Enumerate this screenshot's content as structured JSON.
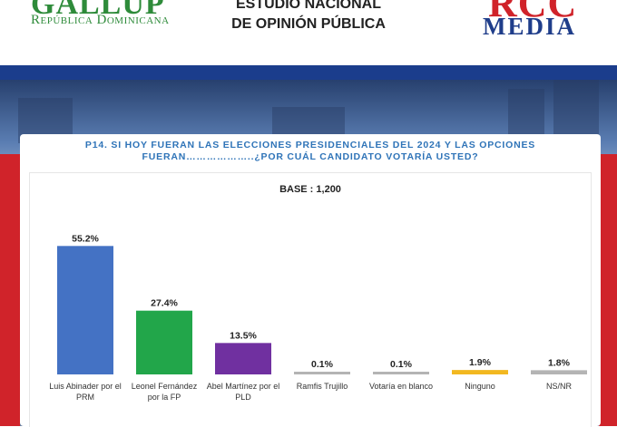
{
  "header": {
    "gallup_brand": "GALLUP",
    "gallup_sub": "República Dominicana",
    "study_line1": "ESTUDIO NACIONAL",
    "study_line2": "DE OPINIÓN PÚBLICA",
    "rcc_brand": "RCC",
    "rcc_media": "MEDIA"
  },
  "colors": {
    "question_text": "#2f74b8",
    "bar_blue": "#4472c4",
    "bar_green": "#22a64a",
    "bar_purple": "#7030a0",
    "bar_gray": "#b4b4b4",
    "bar_yellow": "#f2b820",
    "accent_red": "#d0232a",
    "accent_blue": "#1b3d8c"
  },
  "chart_data": {
    "type": "bar",
    "question_line1": "P14.  SI HOY FUERAN LAS ELECCIONES PRESIDENCIALES DEL 2024 Y LAS OPCIONES",
    "question_line2": "FUERAN………………..¿POR CUÁL CANDIDATO VOTARÍA USTED?",
    "base": "BASE : 1,200",
    "unit": "%",
    "categories": [
      [
        "Luis Abinader por el",
        "PRM"
      ],
      [
        "Leonel Fernández",
        "por la FP"
      ],
      [
        "Abel Martínez por el",
        "PLD"
      ],
      [
        "Ramfis Trujillo"
      ],
      [
        "Votaría en blanco"
      ],
      [
        "Ninguno"
      ],
      [
        "NS/NR"
      ]
    ],
    "values": [
      55.2,
      27.4,
      13.5,
      0.1,
      0.1,
      1.9,
      1.8
    ],
    "value_labels": [
      "55.2%",
      "27.4%",
      "13.5%",
      "0.1%",
      "0.1%",
      "1.9%",
      "1.8%"
    ],
    "bar_colors": [
      "#4472c4",
      "#22a64a",
      "#7030a0",
      "#b4b4b4",
      "#b4b4b4",
      "#f2b820",
      "#b4b4b4"
    ],
    "ylim": [
      0,
      60
    ],
    "grid": false,
    "legend": "none"
  }
}
